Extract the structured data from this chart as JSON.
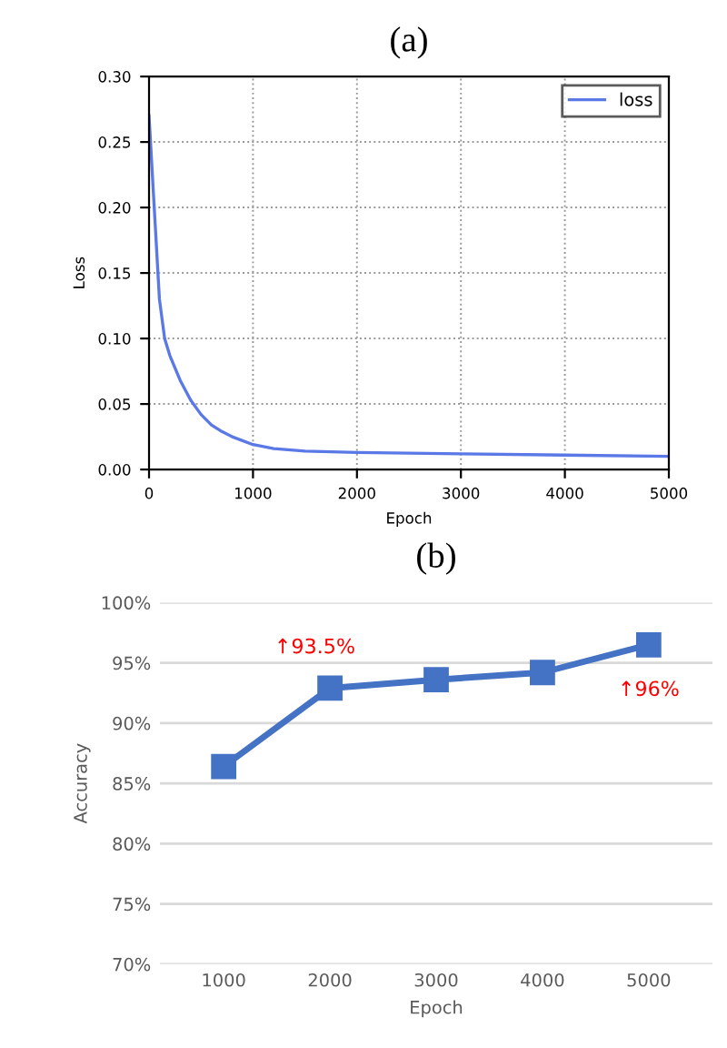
{
  "chart_data": [
    {
      "type": "line",
      "title": "(a)",
      "xlabel": "Epoch",
      "ylabel": "Loss",
      "series": [
        {
          "name": "loss",
          "color": "#5a78e6",
          "x": [
            0,
            50,
            100,
            150,
            200,
            300,
            400,
            500,
            600,
            700,
            800,
            1000,
            1200,
            1500,
            2000,
            3000,
            4000,
            5000
          ],
          "values": [
            0.27,
            0.2,
            0.13,
            0.1,
            0.087,
            0.068,
            0.053,
            0.042,
            0.034,
            0.029,
            0.025,
            0.019,
            0.016,
            0.014,
            0.013,
            0.012,
            0.011,
            0.01
          ]
        }
      ],
      "xlim": [
        0,
        5000
      ],
      "xticks": [
        0,
        1000,
        2000,
        3000,
        4000,
        5000
      ],
      "ylim": [
        0,
        0.3
      ],
      "yticks": [
        {
          "value": 0,
          "label": "0.00"
        },
        {
          "value": 0.05,
          "label": "0.05"
        },
        {
          "value": 0.1,
          "label": "0.10"
        },
        {
          "value": 0.15,
          "label": "0.15"
        },
        {
          "value": 0.2,
          "label": "0.20"
        },
        {
          "value": 0.25,
          "label": "0.25"
        },
        {
          "value": 0.3,
          "label": "0.30"
        }
      ],
      "grid": true,
      "legend": "top right",
      "marker": "none",
      "line_style": "solid"
    },
    {
      "type": "line",
      "title": "(b)",
      "xlabel": "Epoch",
      "ylabel": "Accuracy",
      "categories": [
        "1000",
        "2000",
        "3000",
        "4000",
        "5000"
      ],
      "series": [
        {
          "color": "#4472c4",
          "values": [
            86.4,
            92.9,
            93.6,
            94.2,
            96.5
          ]
        }
      ],
      "ylim": [
        70,
        100
      ],
      "yticks": [
        {
          "value": 70,
          "label": "70%"
        },
        {
          "value": 75,
          "label": "75%"
        },
        {
          "value": 80,
          "label": "80%"
        },
        {
          "value": 85,
          "label": "85%"
        },
        {
          "value": 90,
          "label": "90%"
        },
        {
          "value": 95,
          "label": "95%"
        },
        {
          "value": 100,
          "label": "100%"
        }
      ],
      "annotations": [
        {
          "text": "↑93.5%",
          "x": "2000",
          "y": 92.9
        },
        {
          "text": "↑96%",
          "x": "5000",
          "y": 96.5
        }
      ],
      "grid": "y",
      "marker": "square",
      "line_style": "solid"
    }
  ]
}
